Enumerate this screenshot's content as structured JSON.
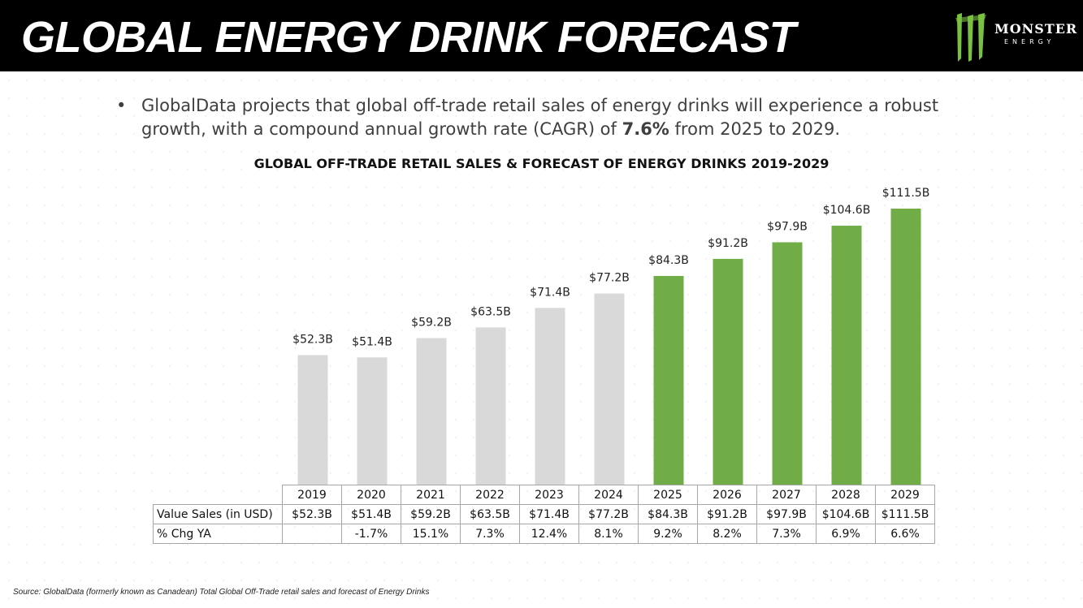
{
  "header": {
    "title": "GLOBAL ENERGY DRINK FORECAST",
    "logo_word": "MONSTER",
    "logo_sub": "ENERGY"
  },
  "bullet": {
    "text_before": "GlobalData projects that global off-trade retail sales of energy drinks will experience a robust growth, with a compound annual growth rate (CAGR) of ",
    "highlight": "7.6%",
    "text_after": " from 2025 to 2029."
  },
  "colors": {
    "actual": "#d9d9d9",
    "forecast": "#70ad47",
    "header_bg": "#000000",
    "logo_green": "#7ac143"
  },
  "chart_data": {
    "type": "bar",
    "title": "GLOBAL OFF-TRADE RETAIL SALES & FORECAST OF ENERGY DRINKS 2019-2029",
    "categories": [
      "2019",
      "2020",
      "2021",
      "2022",
      "2023",
      "2024",
      "2025",
      "2026",
      "2027",
      "2028",
      "2029"
    ],
    "values": [
      52.3,
      51.4,
      59.2,
      63.5,
      71.4,
      77.2,
      84.3,
      91.2,
      97.9,
      104.6,
      111.5
    ],
    "labels": [
      "$52.3B",
      "$51.4B",
      "$59.2B",
      "$63.5B",
      "$71.4B",
      "$77.2B",
      "$84.3B",
      "$91.2B",
      "$97.9B",
      "$104.6B",
      "$111.5B"
    ],
    "forecast_from": "2025",
    "unit": "USD billions",
    "ylim": [
      0,
      111.5
    ],
    "xlabel": "",
    "ylabel": "",
    "grid": false,
    "legend": "none"
  },
  "table": {
    "rows": [
      {
        "label": "Value Sales (in USD)",
        "cells": [
          "$52.3B",
          "$51.4B",
          "$59.2B",
          "$63.5B",
          "$71.4B",
          "$77.2B",
          "$84.3B",
          "$91.2B",
          "$97.9B",
          "$104.6B",
          "$111.5B"
        ]
      },
      {
        "label": "% Chg YA",
        "cells": [
          "",
          "-1.7%",
          "15.1%",
          "7.3%",
          "12.4%",
          "8.1%",
          "9.2%",
          "8.2%",
          "7.3%",
          "6.9%",
          "6.6%"
        ]
      }
    ]
  },
  "source": "Source: GlobalData (formerly known as Canadean) Total Global Off-Trade retail sales and forecast of Energy Drinks"
}
